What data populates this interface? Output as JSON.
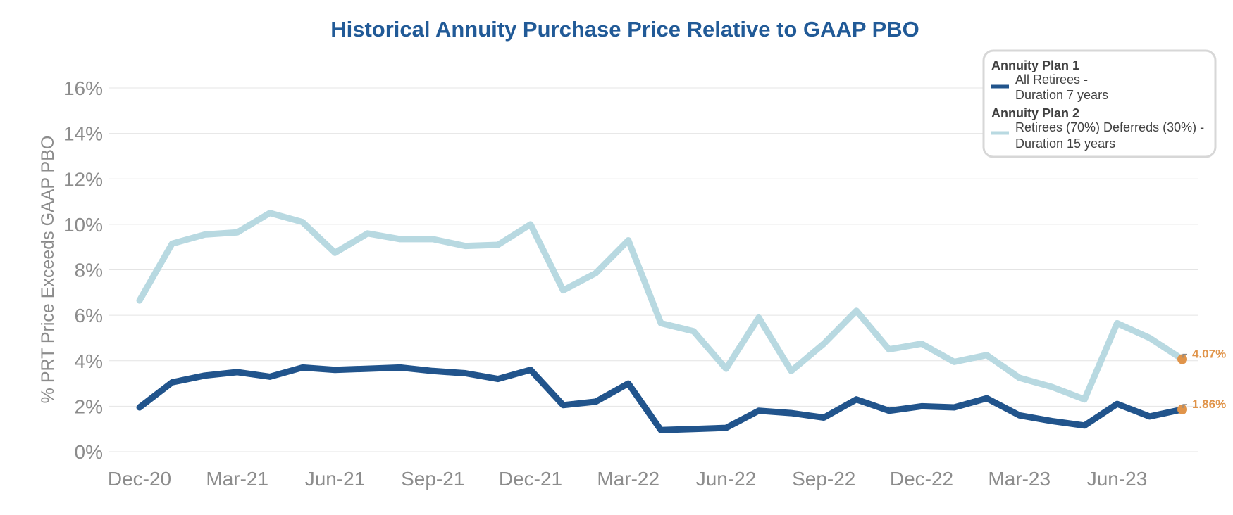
{
  "chart_data": {
    "type": "line",
    "title": "Historical Annuity Purchase Price Relative to GAAP PBO",
    "xlabel": "",
    "ylabel": "% PRT Price Exceeds GAAP PBO",
    "ylim": [
      0,
      16
    ],
    "yticks": [
      "0%",
      "2%",
      "4%",
      "6%",
      "8%",
      "10%",
      "12%",
      "14%",
      "16%"
    ],
    "ytick_values": [
      0,
      2,
      4,
      6,
      8,
      10,
      12,
      14,
      16
    ],
    "xtick_labels": [
      "Dec-20",
      "Mar-21",
      "Jun-21",
      "Sep-21",
      "Dec-21",
      "Mar-22",
      "Jun-22",
      "Sep-22",
      "Dec-22",
      "Mar-23",
      "Jun-23"
    ],
    "xtick_index": [
      0,
      3,
      6,
      9,
      12,
      15,
      18,
      21,
      24,
      27,
      30
    ],
    "x": [
      "Dec-20",
      "Jan-21",
      "Feb-21",
      "Mar-21",
      "Apr-21",
      "May-21",
      "Jun-21",
      "Jul-21",
      "Aug-21",
      "Sep-21",
      "Oct-21",
      "Nov-21",
      "Dec-21",
      "Jan-22",
      "Feb-22",
      "Mar-22",
      "Apr-22",
      "May-22",
      "Jun-22",
      "Jul-22",
      "Aug-22",
      "Sep-22",
      "Oct-22",
      "Nov-22",
      "Dec-22",
      "Jan-23",
      "Feb-23",
      "Mar-23",
      "Apr-23",
      "May-23",
      "Jun-23",
      "Jul-23",
      "Aug-23"
    ],
    "grid": true,
    "legend_position": "top-right",
    "series": [
      {
        "name": "Annuity Plan 1",
        "legend_lines": [
          "All Retirees -",
          "Duration 7 years"
        ],
        "color": "#21548c",
        "values": [
          1.95,
          3.05,
          3.35,
          3.5,
          3.3,
          3.7,
          3.6,
          3.65,
          3.7,
          3.55,
          3.45,
          3.2,
          3.6,
          2.05,
          2.2,
          3.0,
          0.95,
          1.0,
          1.05,
          1.8,
          1.7,
          1.5,
          2.3,
          1.8,
          2.0,
          1.95,
          2.35,
          1.6,
          1.35,
          1.15,
          2.1,
          1.55,
          1.86
        ],
        "end_label": "1.86%"
      },
      {
        "name": "Annuity Plan 2",
        "legend_lines": [
          "Retirees (70%) Deferreds (30%) -",
          "Duration 15 years"
        ],
        "color": "#b8d9e1",
        "values": [
          6.65,
          9.15,
          9.55,
          9.65,
          10.5,
          10.1,
          8.75,
          9.6,
          9.35,
          9.35,
          9.05,
          9.1,
          10.0,
          7.1,
          7.85,
          9.3,
          5.65,
          5.3,
          3.65,
          5.9,
          3.55,
          4.75,
          6.2,
          4.5,
          4.75,
          3.95,
          4.25,
          3.25,
          2.85,
          2.3,
          5.65,
          5.0,
          4.07
        ],
        "end_label": "4.07%"
      }
    ],
    "end_marker_color": "#e0944a"
  }
}
